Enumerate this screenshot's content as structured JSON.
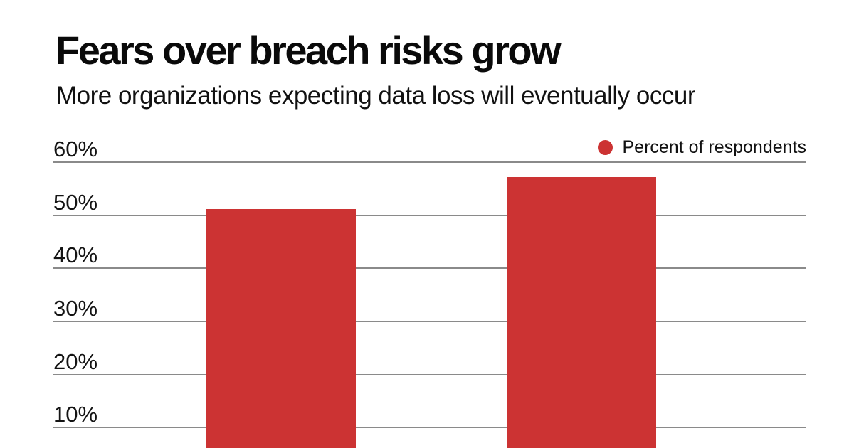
{
  "header": {
    "title": "Fears over breach risks grow",
    "subtitle": "More organizations expecting data loss will eventually occur"
  },
  "legend": {
    "label": "Percent of respondents"
  },
  "colors": {
    "bar": "#cc3333",
    "legend_marker": "#cc3333",
    "gridline": "#8a8a8a",
    "title_text": "#0a0a0a",
    "background": "#ffffff"
  },
  "chart_data": {
    "type": "bar",
    "title": "Fears over breach risks grow",
    "subtitle": "More organizations expecting data loss will eventually occur",
    "series": [
      {
        "name": "Percent of respondents",
        "values": [
          51,
          57
        ]
      }
    ],
    "categories": [
      "",
      ""
    ],
    "xlabel": "",
    "ylabel": "",
    "ylim": [
      0,
      60
    ],
    "y_tick_labels": [
      "60%",
      "50%",
      "40%",
      "30%",
      "20%",
      "10%"
    ],
    "y_tick_values": [
      60,
      50,
      40,
      30,
      20,
      10
    ],
    "grid": true,
    "legend_position": "top-right",
    "note_layout": "bottom of plot (0% baseline and category labels) cropped out of image"
  }
}
